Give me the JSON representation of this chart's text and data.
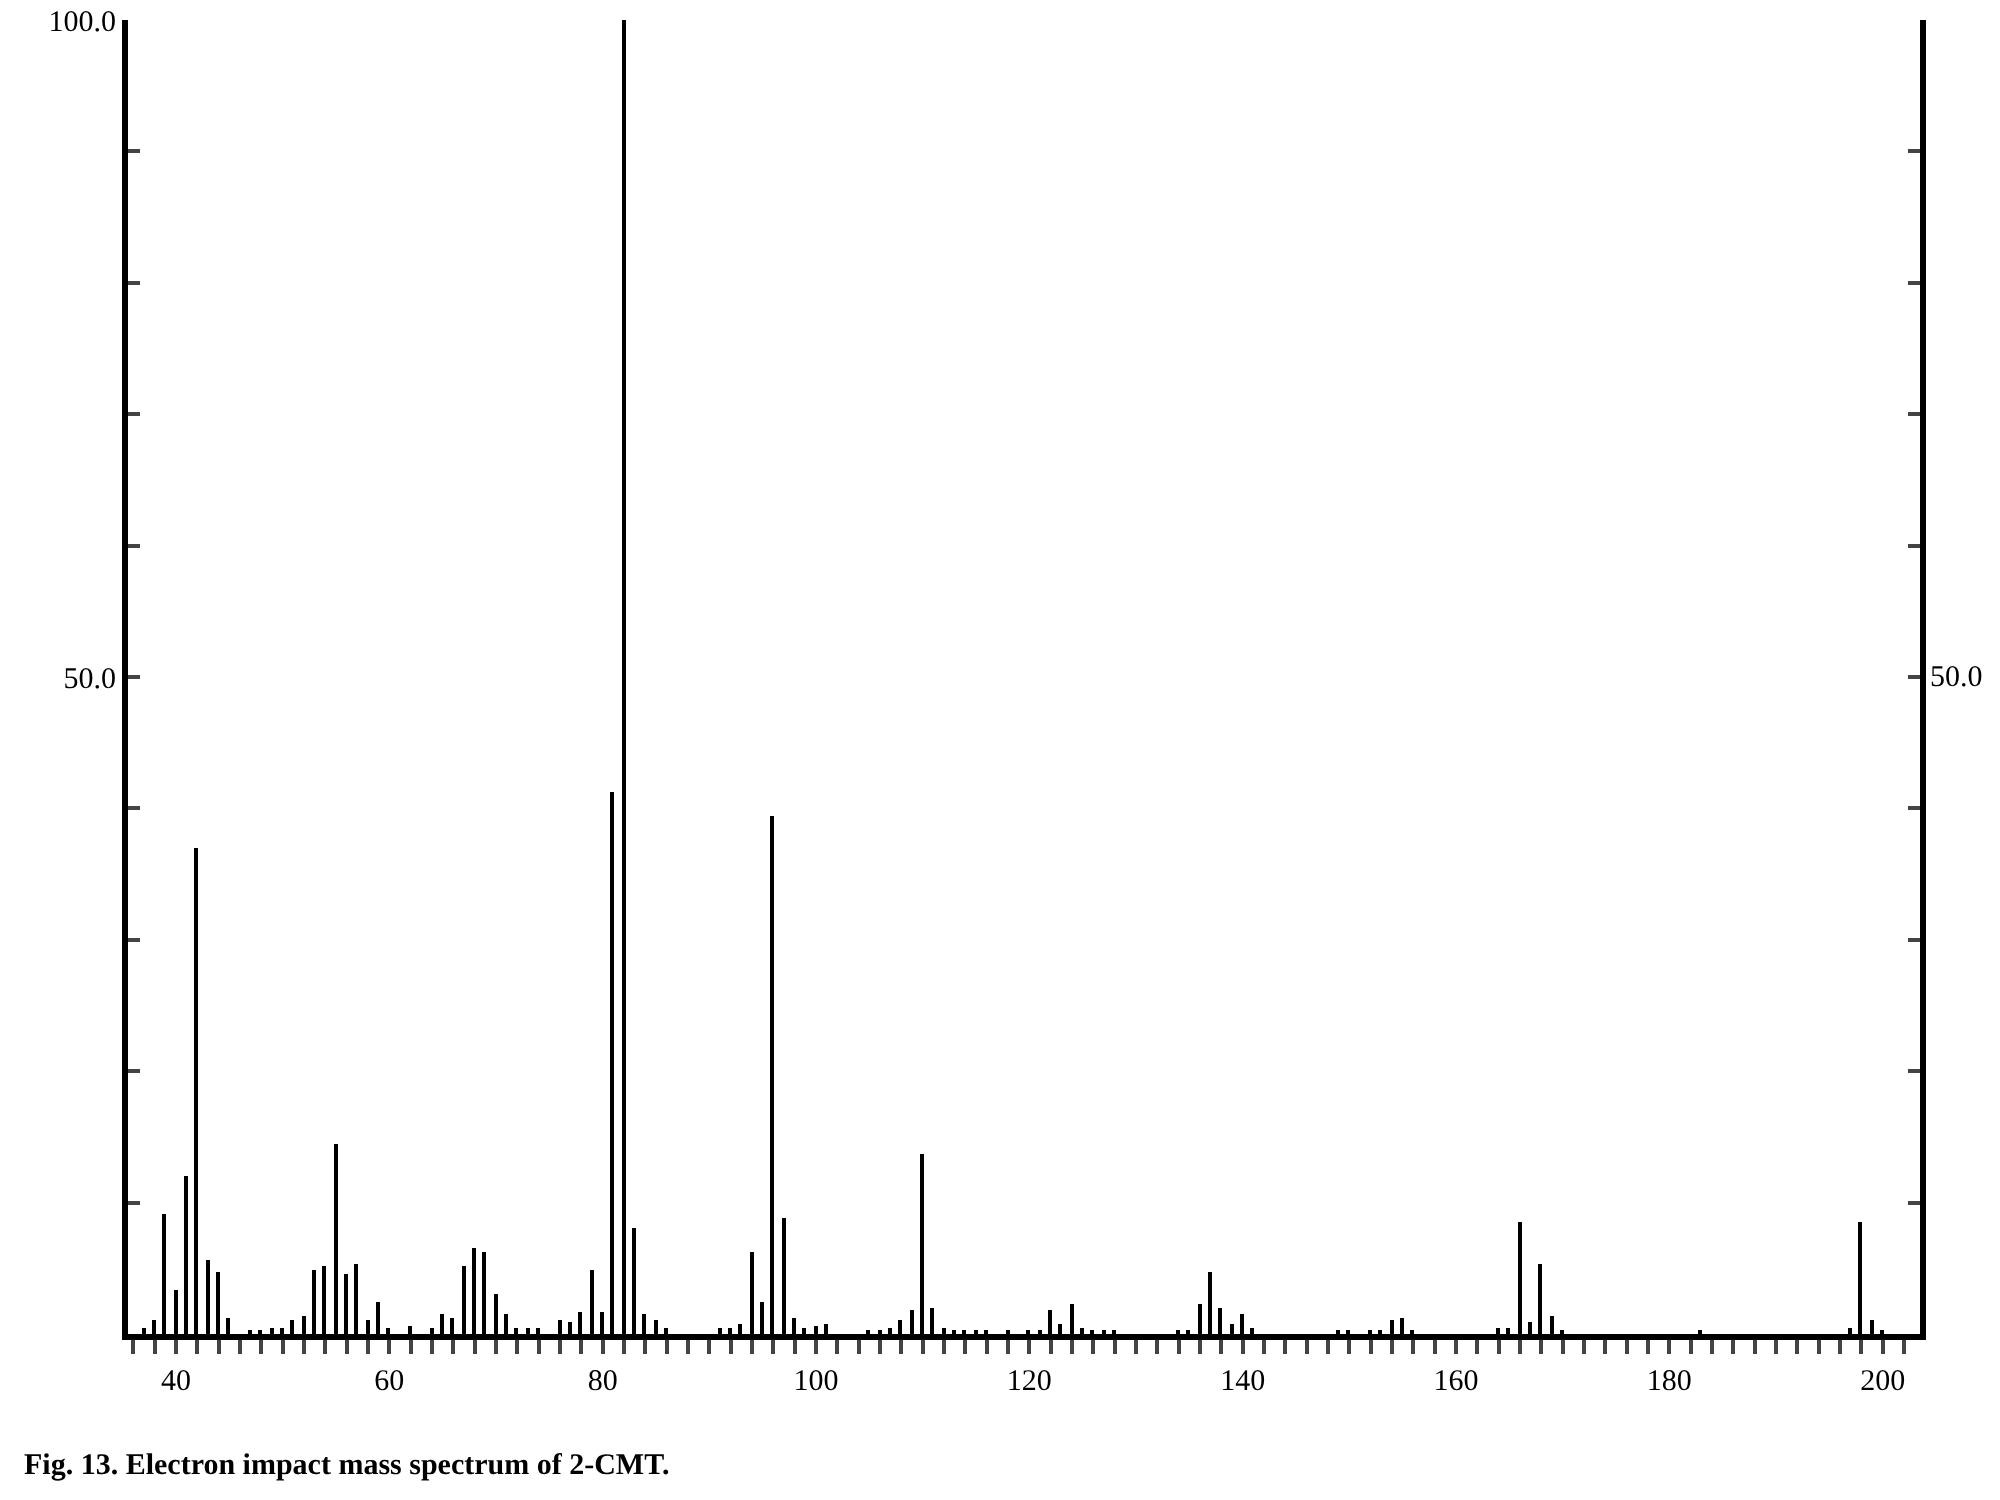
{
  "chart_data": {
    "type": "bar",
    "x": [
      37,
      38,
      39,
      40,
      41,
      42,
      43,
      44,
      45,
      47,
      48,
      49,
      50,
      51,
      52,
      53,
      54,
      55,
      56,
      57,
      58,
      59,
      60,
      62,
      64,
      65,
      66,
      67,
      68,
      69,
      70,
      71,
      72,
      73,
      74,
      76,
      77,
      78,
      79,
      80,
      81,
      82,
      83,
      84,
      85,
      86,
      91,
      92,
      93,
      94,
      95,
      96,
      97,
      98,
      99,
      100,
      101,
      105,
      106,
      107,
      108,
      109,
      110,
      111,
      112,
      113,
      114,
      115,
      116,
      118,
      120,
      121,
      122,
      123,
      124,
      125,
      126,
      127,
      128,
      134,
      135,
      136,
      137,
      138,
      139,
      140,
      141,
      149,
      150,
      152,
      153,
      154,
      155,
      156,
      164,
      165,
      166,
      167,
      168,
      169,
      170,
      183,
      197,
      198,
      199,
      200
    ],
    "values": [
      0.4,
      1.0,
      9.2,
      3.4,
      12.1,
      37.0,
      5.6,
      4.7,
      1.2,
      0.3,
      0.3,
      0.5,
      0.5,
      1.0,
      1.4,
      4.9,
      5.2,
      14.5,
      4.6,
      5.3,
      1.0,
      2.5,
      0.4,
      0.6,
      0.4,
      1.5,
      1.2,
      5.2,
      6.6,
      6.2,
      3.0,
      1.5,
      0.5,
      0.5,
      0.5,
      1.0,
      0.9,
      1.6,
      4.9,
      1.6,
      41.3,
      100,
      8.0,
      1.5,
      1.0,
      0.5,
      0.4,
      0.5,
      0.8,
      6.3,
      2.5,
      39.4,
      8.8,
      1.2,
      0.4,
      0.6,
      0.8,
      0.3,
      0.3,
      0.5,
      1.0,
      1.8,
      13.7,
      2.0,
      0.5,
      0.3,
      0.3,
      0.3,
      0.3,
      0.3,
      0.3,
      0.3,
      1.8,
      0.7,
      2.3,
      0.5,
      0.3,
      0.3,
      0.3,
      0.3,
      0.3,
      2.3,
      4.7,
      2.0,
      0.7,
      1.5,
      0.4,
      0.3,
      0.3,
      0.3,
      0.3,
      1.0,
      1.2,
      0.3,
      0.4,
      0.4,
      8.5,
      0.9,
      5.3,
      1.4,
      0.3,
      0.3,
      0.4,
      8.6,
      1.0,
      0.3
    ],
    "color": "#000000",
    "grid": false,
    "xlim": [
      35.5,
      203.5
    ],
    "xticks": [
      {
        "value": 36,
        "label": null
      },
      {
        "value": 38,
        "label": null
      },
      40,
      {
        "value": 42,
        "label": null
      },
      {
        "value": 44,
        "label": null
      },
      {
        "value": 46,
        "label": null
      },
      {
        "value": 48,
        "label": null
      },
      {
        "value": 50,
        "label": null
      },
      {
        "value": 52,
        "label": null
      },
      {
        "value": 54,
        "label": null
      },
      {
        "value": 56,
        "label": null
      },
      {
        "value": 58,
        "label": null
      },
      60,
      {
        "value": 62,
        "label": null
      },
      {
        "value": 64,
        "label": null
      },
      {
        "value": 66,
        "label": null
      },
      {
        "value": 68,
        "label": null
      },
      {
        "value": 70,
        "label": null
      },
      {
        "value": 72,
        "label": null
      },
      {
        "value": 74,
        "label": null
      },
      {
        "value": 76,
        "label": null
      },
      {
        "value": 78,
        "label": null
      },
      80,
      {
        "value": 82,
        "label": null
      },
      {
        "value": 84,
        "label": null
      },
      {
        "value": 86,
        "label": null
      },
      {
        "value": 88,
        "label": null
      },
      {
        "value": 90,
        "label": null
      },
      {
        "value": 92,
        "label": null
      },
      {
        "value": 94,
        "label": null
      },
      {
        "value": 96,
        "label": null
      },
      {
        "value": 98,
        "label": null
      },
      100,
      {
        "value": 102,
        "label": null
      },
      {
        "value": 104,
        "label": null
      },
      {
        "value": 106,
        "label": null
      },
      {
        "value": 108,
        "label": null
      },
      {
        "value": 110,
        "label": null
      },
      {
        "value": 112,
        "label": null
      },
      {
        "value": 114,
        "label": null
      },
      {
        "value": 116,
        "label": null
      },
      {
        "value": 118,
        "label": null
      },
      120,
      {
        "value": 122,
        "label": null
      },
      {
        "value": 124,
        "label": null
      },
      {
        "value": 126,
        "label": null
      },
      {
        "value": 128,
        "label": null
      },
      {
        "value": 130,
        "label": null
      },
      {
        "value": 132,
        "label": null
      },
      {
        "value": 134,
        "label": null
      },
      {
        "value": 136,
        "label": null
      },
      {
        "value": 138,
        "label": null
      },
      140,
      {
        "value": 142,
        "label": null
      },
      {
        "value": 144,
        "label": null
      },
      {
        "value": 146,
        "label": null
      },
      {
        "value": 148,
        "label": null
      },
      {
        "value": 150,
        "label": null
      },
      {
        "value": 152,
        "label": null
      },
      {
        "value": 154,
        "label": null
      },
      {
        "value": 156,
        "label": null
      },
      {
        "value": 158,
        "label": null
      },
      160,
      {
        "value": 162,
        "label": null
      },
      {
        "value": 164,
        "label": null
      },
      {
        "value": 166,
        "label": null
      },
      {
        "value": 168,
        "label": null
      },
      {
        "value": 170,
        "label": null
      },
      {
        "value": 172,
        "label": null
      },
      {
        "value": 174,
        "label": null
      },
      {
        "value": 176,
        "label": null
      },
      {
        "value": 178,
        "label": null
      },
      180,
      {
        "value": 182,
        "label": null
      },
      {
        "value": 184,
        "label": null
      },
      {
        "value": 186,
        "label": null
      },
      {
        "value": 188,
        "label": null
      },
      {
        "value": 190,
        "label": null
      },
      {
        "value": 192,
        "label": null
      },
      {
        "value": 194,
        "label": null
      },
      {
        "value": 196,
        "label": null
      },
      {
        "value": 198,
        "label": null
      },
      200,
      {
        "value": 202,
        "label": null
      }
    ],
    "ylim": [
      0,
      100
    ],
    "yticks": [
      {
        "value": 0,
        "label": null
      },
      {
        "value": 10,
        "label": null
      },
      {
        "value": 20,
        "label": null
      },
      {
        "value": 30,
        "label": null
      },
      {
        "value": 40,
        "label": null
      },
      {
        "value": 50,
        "label": "50.0"
      },
      {
        "value": 60,
        "label": null
      },
      {
        "value": 70,
        "label": null
      },
      {
        "value": 80,
        "label": null
      },
      {
        "value": 90,
        "label": null
      },
      {
        "value": 100,
        "label": "100.0"
      }
    ],
    "annotations": [
      "Fig. 13. Electron impact mass spectrum of 2-CMT.",
      "50.0"
    ]
  }
}
